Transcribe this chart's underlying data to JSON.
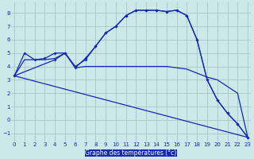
{
  "xlabel": "Graphe des températures (°c)",
  "bg_color": "#cce8e8",
  "grid_color": "#aacccc",
  "line_color": "#1428b4",
  "ylim": [
    -1.6,
    8.8
  ],
  "xlim": [
    -0.3,
    23.3
  ],
  "yticks": [
    -1,
    0,
    1,
    2,
    3,
    4,
    5,
    6,
    7,
    8
  ],
  "xticks": [
    0,
    1,
    2,
    3,
    4,
    5,
    6,
    7,
    8,
    9,
    10,
    11,
    12,
    13,
    14,
    15,
    16,
    17,
    18,
    19,
    20,
    21,
    22,
    23
  ],
  "line1_x": [
    0,
    1,
    2,
    3,
    4,
    5,
    6,
    7,
    8,
    9,
    10,
    11,
    12,
    13,
    14,
    15,
    16,
    17,
    18,
    19,
    20,
    21,
    22,
    23
  ],
  "line1_y": [
    3.3,
    5.0,
    4.5,
    4.6,
    5.0,
    5.0,
    4.0,
    4.5,
    5.5,
    6.5,
    7.0,
    7.8,
    8.2,
    8.2,
    8.2,
    8.1,
    8.2,
    7.8,
    6.0,
    3.0,
    1.5,
    0.5,
    -0.3,
    -1.3
  ],
  "line2_x": [
    0,
    1,
    2,
    3,
    4,
    5,
    6,
    7,
    8,
    9,
    10,
    11,
    12,
    13,
    14,
    15,
    16,
    17,
    18,
    19,
    20,
    21,
    22,
    23
  ],
  "line2_y": [
    3.3,
    4.5,
    4.5,
    4.5,
    4.6,
    5.0,
    3.9,
    4.0,
    4.0,
    4.0,
    4.0,
    4.0,
    4.0,
    4.0,
    4.0,
    4.0,
    3.9,
    3.8,
    3.5,
    3.2,
    3.0,
    2.5,
    2.0,
    -1.3
  ],
  "line3_x": [
    0,
    4,
    5,
    6,
    7,
    8,
    9,
    10,
    11,
    12,
    13,
    14,
    15,
    16,
    17,
    18,
    19,
    20,
    21,
    22,
    23
  ],
  "line3_y": [
    3.3,
    4.5,
    5.0,
    3.9,
    4.6,
    5.5,
    6.5,
    7.0,
    7.8,
    8.2,
    8.2,
    8.2,
    8.1,
    8.2,
    7.8,
    6.0,
    3.0,
    1.5,
    0.5,
    -0.3,
    -1.3
  ],
  "line4_x": [
    0,
    23
  ],
  "line4_y": [
    3.3,
    -1.3
  ],
  "xlabel_fontsize": 5.5,
  "tick_fontsize": 5.0
}
